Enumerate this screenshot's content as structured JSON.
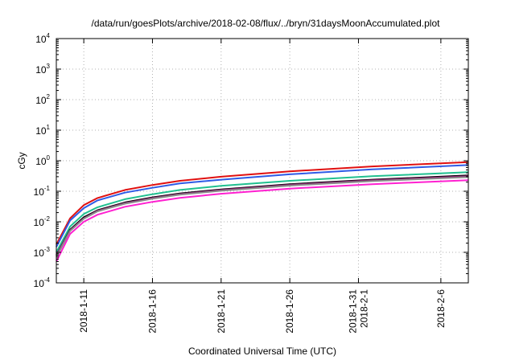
{
  "chart_data": {
    "type": "line",
    "title": "/data/run/goesPlots/archive/2018-02-08/flux/../bryn/31daysMoonAccumulated.plot",
    "xlabel": "Coordinated Universal Time (UTC)",
    "ylabel": "cGy",
    "yscale": "log",
    "ylim": [
      0.0001,
      10000
    ],
    "xlim": [
      "2018-01-09",
      "2018-02-08"
    ],
    "grid": true,
    "legend": "none",
    "y_ticks": [
      {
        "base": "10",
        "exp": "-4",
        "value": 0.0001
      },
      {
        "base": "10",
        "exp": "-3",
        "value": 0.001
      },
      {
        "base": "10",
        "exp": "-2",
        "value": 0.01
      },
      {
        "base": "10",
        "exp": "-1",
        "value": 0.1
      },
      {
        "base": "10",
        "exp": "0",
        "value": 1
      },
      {
        "base": "10",
        "exp": "1",
        "value": 10
      },
      {
        "base": "10",
        "exp": "2",
        "value": 100
      },
      {
        "base": "10",
        "exp": "3",
        "value": 1000
      },
      {
        "base": "10",
        "exp": "4",
        "value": 10000
      }
    ],
    "x_ticks": [
      {
        "date": "2018-01-11",
        "labels": [
          "2018-1-11"
        ]
      },
      {
        "date": "2018-01-16",
        "labels": [
          "2018-1-16"
        ]
      },
      {
        "date": "2018-01-21",
        "labels": [
          "2018-1-21"
        ]
      },
      {
        "date": "2018-01-26",
        "labels": [
          "2018-1-26"
        ]
      },
      {
        "date": "2018-01-31",
        "labels": [
          "2018-1-31",
          "2018-2-1"
        ]
      },
      {
        "date": "2018-02-06",
        "labels": [
          "2018-2-6"
        ]
      }
    ],
    "x": [
      "2018-01-09",
      "2018-01-10",
      "2018-01-11",
      "2018-01-12",
      "2018-01-14",
      "2018-01-16",
      "2018-01-18",
      "2018-01-21",
      "2018-01-26",
      "2018-02-01",
      "2018-02-08"
    ],
    "series": [
      {
        "color": "#e01010",
        "values": [
          0.0018,
          0.013,
          0.035,
          0.06,
          0.11,
          0.16,
          0.22,
          0.3,
          0.45,
          0.65,
          0.9
        ]
      },
      {
        "color": "#2e5be6",
        "values": [
          0.0015,
          0.011,
          0.028,
          0.05,
          0.09,
          0.13,
          0.18,
          0.24,
          0.36,
          0.52,
          0.72
        ]
      },
      {
        "color": "#20c090",
        "values": [
          0.001,
          0.007,
          0.018,
          0.03,
          0.055,
          0.08,
          0.11,
          0.15,
          0.22,
          0.31,
          0.42
        ]
      },
      {
        "color": "#000000",
        "values": [
          0.0008,
          0.0055,
          0.014,
          0.024,
          0.043,
          0.063,
          0.085,
          0.115,
          0.17,
          0.24,
          0.33
        ]
      },
      {
        "color": "#8a2070",
        "values": [
          0.0008,
          0.0052,
          0.013,
          0.023,
          0.041,
          0.06,
          0.081,
          0.11,
          0.162,
          0.23,
          0.31
        ]
      },
      {
        "color": "#8a8a8a",
        "values": [
          0.0007,
          0.005,
          0.0125,
          0.022,
          0.039,
          0.057,
          0.077,
          0.104,
          0.153,
          0.215,
          0.29
        ]
      },
      {
        "color": "#ff20d0",
        "values": [
          0.0005,
          0.004,
          0.01,
          0.017,
          0.031,
          0.045,
          0.061,
          0.083,
          0.122,
          0.17,
          0.23
        ]
      }
    ]
  }
}
